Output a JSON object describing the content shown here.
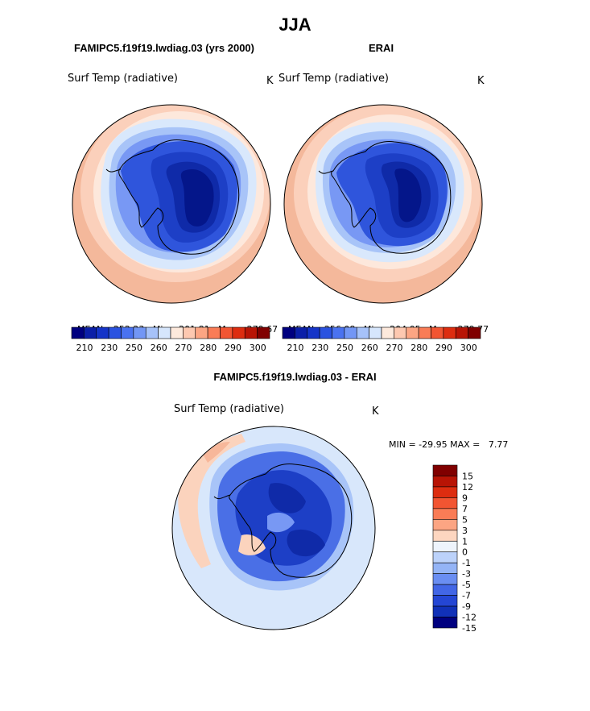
{
  "title": "JJA",
  "panels": [
    {
      "subtitle": "FAMIPC5.f19f19.lwdiag.03 (yrs 2000)",
      "variable": "Surf Temp (radiative)",
      "units": "K",
      "mean_label": "MEAN=",
      "mean": "252.23",
      "min_label": "Min=",
      "min": "201.81",
      "max_label": "Max=",
      "max": "279.67"
    },
    {
      "subtitle": "ERAI",
      "variable": "Surf Temp (radiative)",
      "units": "K",
      "mean_label": "MEAN=",
      "mean": "256.08",
      "min_label": "Min=",
      "min": "204.05",
      "max_label": "Max=",
      "max": "279.77"
    },
    {
      "subtitle": "FAMIPC5.f19f19.lwdiag.03 - ERAI",
      "variable": "Surf Temp (radiative)",
      "units": "K",
      "minmax_text": "MIN = -29.95 MAX =   7.77"
    }
  ],
  "chart_data": [
    {
      "type": "heatmap",
      "projection": "south-polar-stereographic",
      "title": "FAMIPC5.f19f19.lwdiag.03 (yrs 2000)",
      "variable": "Surf Temp (radiative)",
      "units": "K",
      "mean": 252.23,
      "min": 201.81,
      "max": 279.67,
      "colorbar_ticks": [
        "210",
        "230",
        "250",
        "260",
        "270",
        "280",
        "290",
        "300"
      ]
    },
    {
      "type": "heatmap",
      "projection": "south-polar-stereographic",
      "title": "ERAI",
      "variable": "Surf Temp (radiative)",
      "units": "K",
      "mean": 256.08,
      "min": 204.05,
      "max": 279.77,
      "colorbar_ticks": [
        "210",
        "230",
        "250",
        "260",
        "270",
        "280",
        "290",
        "300"
      ]
    },
    {
      "type": "heatmap",
      "projection": "south-polar-stereographic",
      "title": "FAMIPC5.f19f19.lwdiag.03 - ERAI",
      "variable": "Surf Temp (radiative)",
      "units": "K",
      "min": -29.95,
      "max": 7.77,
      "colorbar_ticks": [
        "15",
        "12",
        "9",
        "7",
        "5",
        "3",
        "1",
        "0",
        "-1",
        "-3",
        "-5",
        "-7",
        "-9",
        "-12",
        "-15"
      ]
    }
  ],
  "abs_colors": [
    "#00007f",
    "#0b1fa8",
    "#1534c8",
    "#2a52e0",
    "#4a72f0",
    "#7296f5",
    "#a6c2f9",
    "#d6e6fc",
    "#fde9dc",
    "#fdc8b0",
    "#fca583",
    "#f97c56",
    "#f25532",
    "#dd2d10",
    "#b81405",
    "#800000"
  ],
  "diff_colors": [
    "#800000",
    "#b81405",
    "#dd2d10",
    "#f25532",
    "#f97c56",
    "#fca583",
    "#fdd6c0",
    "#eef4fc",
    "#bcd2fa",
    "#94b4f6",
    "#6a8ef2",
    "#4266e6",
    "#2446d4",
    "#1131b8",
    "#00007f"
  ],
  "map_colors": {
    "ocean_far": "#f4b89b",
    "ocean_mid": "#fbd0bb",
    "ocean_near": "#fde8dc",
    "ice_edge": "#d9e8fc",
    "ice_1": "#a8c4f8",
    "ice_2": "#7898f4",
    "ice_3": "#4a6fe6",
    "land_1": "#2f55dc",
    "land_2": "#1d3fc6",
    "land_3": "#0f2aa8",
    "land_4": "#04168a",
    "diff_bg": "#d8e7fb",
    "diff_warm": "#fbd3bd",
    "diff_warm2": "#f7b79a"
  }
}
